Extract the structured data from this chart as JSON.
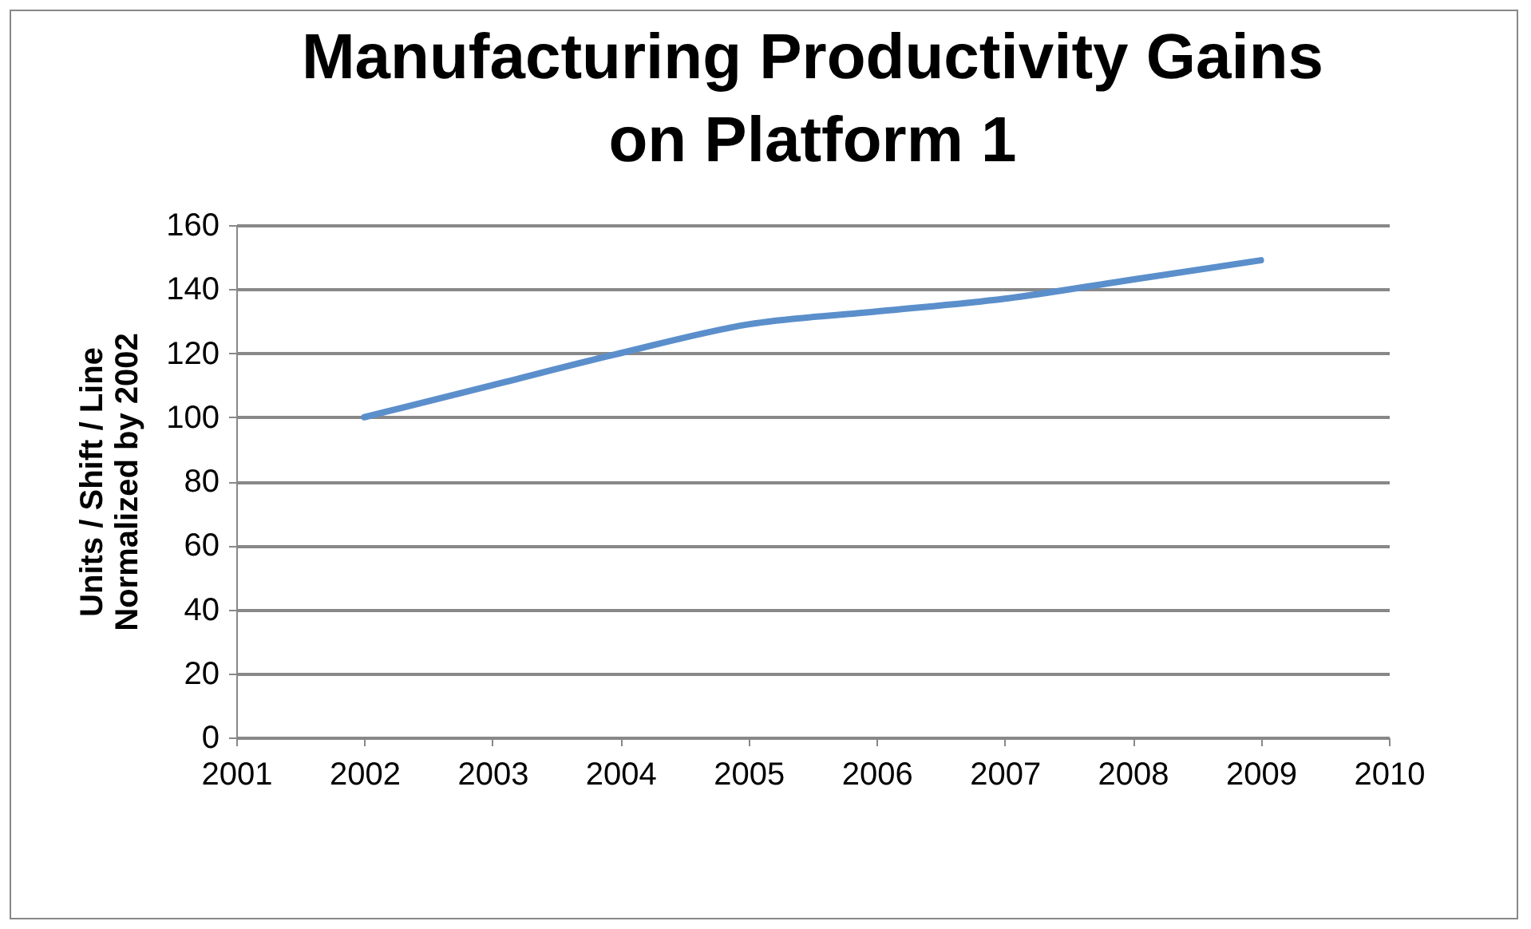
{
  "chart_data": {
    "type": "line",
    "title": "Manufacturing Productivity Gains on Platform 1",
    "ylabel": "Units / Shift / Line\nNormalized by 2002",
    "x": [
      2002,
      2003,
      2004,
      2005,
      2006,
      2007,
      2008,
      2009
    ],
    "series": [
      {
        "color": "#5b8fcb",
        "values": [
          100,
          110,
          120,
          129,
          133,
          137,
          143,
          149
        ]
      }
    ],
    "xlim": [
      2001,
      2010
    ],
    "xticks": [
      2001,
      2002,
      2003,
      2004,
      2005,
      2006,
      2007,
      2008,
      2009,
      2010
    ],
    "ylim": [
      0,
      160
    ],
    "yticks": [
      0,
      20,
      40,
      60,
      80,
      100,
      120,
      140,
      160
    ],
    "grid": "y",
    "marker": "none",
    "line_style": "solid"
  }
}
